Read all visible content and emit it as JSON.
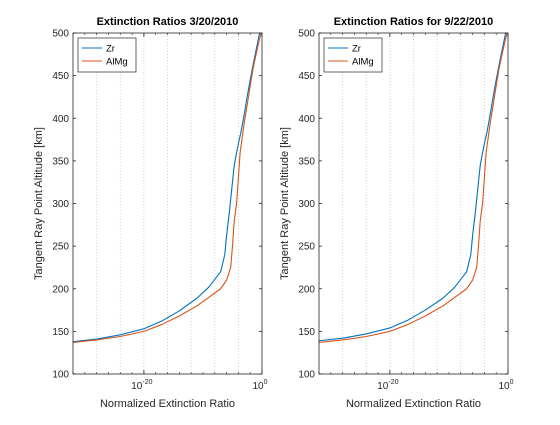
{
  "chart_data": [
    {
      "type": "line",
      "title": "Extinction Ratios 3/20/2010",
      "xlabel": "Normalized Extinction Ratio",
      "ylabel": "Tangent Ray Point Altitude [km]",
      "xscale": "log",
      "xlim": [
        1e-32,
        1
      ],
      "ylim": [
        100,
        500
      ],
      "yticks": [
        100,
        150,
        200,
        250,
        300,
        350,
        400,
        450,
        500
      ],
      "xticks": [
        {
          "value": 1e-20,
          "label": "10",
          "exp": "-20"
        },
        {
          "value": 1,
          "label": "10",
          "exp": "0"
        }
      ],
      "grid": "x-dotted",
      "legend": {
        "position": "top-left"
      },
      "series": [
        {
          "name": "Zr",
          "color": "#0072bd",
          "points": [
            [
              1e-32,
              138
            ],
            [
              1e-28,
              141
            ],
            [
              1e-24,
              146
            ],
            [
              1e-20,
              153
            ],
            [
              1e-17,
              162
            ],
            [
              1e-14,
              174
            ],
            [
              1e-11,
              189
            ],
            [
              1e-09,
              202
            ],
            [
              1e-07,
              220
            ],
            [
              5e-07,
              240
            ],
            [
              1e-06,
              262
            ],
            [
              2e-06,
              280
            ],
            [
              3e-06,
              290
            ],
            [
              5e-06,
              305
            ],
            [
              1e-05,
              325
            ],
            [
              2e-05,
              345
            ],
            [
              5e-05,
              360
            ],
            [
              0.0001,
              370
            ],
            [
              0.0003,
              385
            ],
            [
              0.001,
              405
            ],
            [
              0.003,
              425
            ],
            [
              0.01,
              445
            ],
            [
              0.03,
              462
            ],
            [
              0.1,
              480
            ],
            [
              0.4,
              500
            ]
          ]
        },
        {
          "name": "AlMg",
          "color": "#d95319",
          "points": [
            [
              1e-32,
              137
            ],
            [
              1e-28,
              140
            ],
            [
              1e-24,
              144
            ],
            [
              1e-20,
              150
            ],
            [
              1e-17,
              158
            ],
            [
              1e-14,
              168
            ],
            [
              1e-11,
              180
            ],
            [
              1e-09,
              190
            ],
            [
              1e-07,
              200
            ],
            [
              1e-06,
              210
            ],
            [
              5e-06,
              225
            ],
            [
              1e-05,
              250
            ],
            [
              2e-05,
              280
            ],
            [
              5e-05,
              300
            ],
            [
              0.0001,
              330
            ],
            [
              0.0002,
              360
            ],
            [
              0.0004,
              375
            ],
            [
              0.001,
              395
            ],
            [
              0.003,
              415
            ],
            [
              0.01,
              438
            ],
            [
              0.03,
              458
            ],
            [
              0.1,
              475
            ],
            [
              0.3,
              490
            ],
            [
              0.7,
              500
            ]
          ]
        }
      ]
    },
    {
      "type": "line",
      "title": "Extinction Ratios for 9/22/2010",
      "xlabel": "Normalized Extinction Ratio",
      "ylabel": "Tangent Ray Point Altitude [km]",
      "xscale": "log",
      "xlim": [
        1e-32,
        1
      ],
      "ylim": [
        100,
        500
      ],
      "yticks": [
        100,
        150,
        200,
        250,
        300,
        350,
        400,
        450,
        500
      ],
      "xticks": [
        {
          "value": 1e-20,
          "label": "10",
          "exp": "-20"
        },
        {
          "value": 1,
          "label": "10",
          "exp": "0"
        }
      ],
      "grid": "x-dotted",
      "legend": {
        "position": "top-left"
      },
      "series": [
        {
          "name": "Zr",
          "color": "#0072bd",
          "points": [
            [
              1e-32,
              139
            ],
            [
              1e-28,
              142
            ],
            [
              1e-24,
              147
            ],
            [
              1e-20,
              154
            ],
            [
              1e-17,
              163
            ],
            [
              1e-14,
              175
            ],
            [
              1e-11,
              189
            ],
            [
              1e-09,
              202
            ],
            [
              1e-07,
              220
            ],
            [
              5e-07,
              240
            ],
            [
              1e-06,
              262
            ],
            [
              2e-06,
              280
            ],
            [
              3e-06,
              290
            ],
            [
              5e-06,
              305
            ],
            [
              1e-05,
              325
            ],
            [
              2e-05,
              345
            ],
            [
              5e-05,
              360
            ],
            [
              0.0001,
              370
            ],
            [
              0.0003,
              385
            ],
            [
              0.001,
              405
            ],
            [
              0.003,
              425
            ],
            [
              0.01,
              445
            ],
            [
              0.03,
              462
            ],
            [
              0.1,
              480
            ],
            [
              0.4,
              500
            ]
          ]
        },
        {
          "name": "AlMg",
          "color": "#d95319",
          "points": [
            [
              1e-32,
              137
            ],
            [
              1e-28,
              140
            ],
            [
              1e-24,
              144
            ],
            [
              1e-20,
              150
            ],
            [
              1e-17,
              158
            ],
            [
              1e-14,
              168
            ],
            [
              1e-11,
              180
            ],
            [
              1e-09,
              190
            ],
            [
              1e-07,
              200
            ],
            [
              1e-06,
              210
            ],
            [
              5e-06,
              225
            ],
            [
              1e-05,
              250
            ],
            [
              2e-05,
              280
            ],
            [
              5e-05,
              300
            ],
            [
              0.0001,
              330
            ],
            [
              0.0002,
              360
            ],
            [
              0.0004,
              375
            ],
            [
              0.001,
              395
            ],
            [
              0.003,
              415
            ],
            [
              0.01,
              438
            ],
            [
              0.03,
              458
            ],
            [
              0.1,
              475
            ],
            [
              0.3,
              490
            ],
            [
              0.7,
              500
            ]
          ]
        }
      ]
    }
  ]
}
